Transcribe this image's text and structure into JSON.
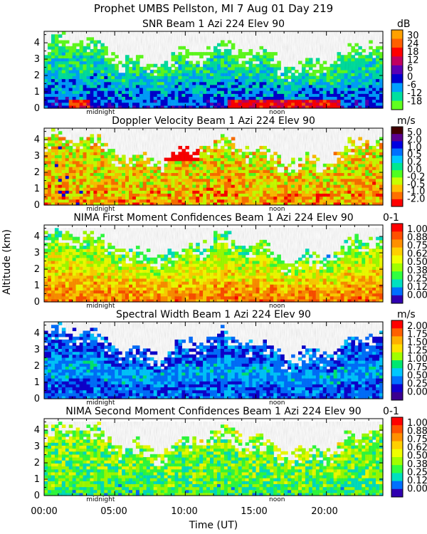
{
  "header": {
    "line1": "Prophet  UMBS Pellston, MI   7 Aug 01 Day 219"
  },
  "axes": {
    "ylabel": "Altitude (km)",
    "xlabel": "Time (UT)",
    "xticks": [
      "00:00",
      "05:00",
      "10:00",
      "15:00",
      "20:00"
    ],
    "yticks": [
      "0",
      "1",
      "2",
      "3",
      "4"
    ],
    "midnight_label": "midnight",
    "noon_label": "noon"
  },
  "chart_data": [
    {
      "type": "heatmap",
      "title": "SNR Beam 1 Azi 224 Elev 90",
      "xlabel": "Time (UT)",
      "ylabel": "Altitude (km)",
      "xlim": [
        0,
        24
      ],
      "ylim": [
        0,
        4.7
      ],
      "colorbar": {
        "unit": "dB",
        "labels": [
          "30",
          "24",
          "18",
          "12",
          "6",
          "0",
          "-6",
          "-12",
          "-18"
        ],
        "colors": [
          "#ffa000",
          "#ff6000",
          "#ff0000",
          "#c00060",
          "#5a00b4",
          "#0000d0",
          "#00a0ff",
          "#00e0a0",
          "#60ff20"
        ]
      },
      "features": "Strong returns (18-30 dB) near 0-0.5 km around 02:00-03:00 and 14:00-20:00; 6-12 dB layer 1-2.5 km 02:00-10:00; weak (-6 to -18 dB) above 2.5 km; no data above ~4.5 km."
    },
    {
      "type": "heatmap",
      "title": "Doppler Velocity Beam 1 Azi 224 Elev 90",
      "xlabel": "Time (UT)",
      "ylabel": "Altitude (km)",
      "xlim": [
        0,
        24
      ],
      "ylim": [
        0,
        4.7
      ],
      "colorbar": {
        "unit": "m/s",
        "labels": [
          "5.0",
          "2.0",
          "1.0",
          "0.5",
          "0.2",
          "0.0",
          "-0.2",
          "-0.5",
          "-1.0",
          "-2.0"
        ],
        "colors": [
          "#400000",
          "#5a0090",
          "#0000e0",
          "#0070ff",
          "#00c8ff",
          "#00e890",
          "#50ff20",
          "#c8ff00",
          "#ffc000",
          "#ff7000",
          "#ff0000"
        ]
      },
      "features": "Mostly -0.2 to -1.0 m/s (yellow-orange) throughout; red (-2.0 m/s) patch 3-4.5 km near 10:00; occasional blue updraft streaks 01:00-03:00."
    },
    {
      "type": "heatmap",
      "title": "NIMA First Moment Confidences Beam 1 Azi 224 Elev 90",
      "xlabel": "Time (UT)",
      "ylabel": "Altitude (km)",
      "xlim": [
        0,
        24
      ],
      "ylim": [
        0,
        4.7
      ],
      "colorbar": {
        "unit": "0-1",
        "labels": [
          "1.00",
          "0.88",
          "0.75",
          "0.62",
          "0.50",
          "0.38",
          "0.25",
          "0.12",
          "0.00"
        ],
        "colors": [
          "#ff0000",
          "#ff5000",
          "#ff9000",
          "#ffd000",
          "#f0ff00",
          "#a0ff00",
          "#30ff40",
          "#00e0c0",
          "#0070ff",
          "#3000b0"
        ]
      },
      "features": "High confidence (0.88-1.00) below ~2.5 km, especially 02:00-03:00 and 12:00-24:00; moderate (0.50-0.75) aloft."
    },
    {
      "type": "heatmap",
      "title": "Spectral Width Beam 1 Azi 224 Elev 90",
      "xlabel": "Time (UT)",
      "ylabel": "Altitude (km)",
      "xlim": [
        0,
        24
      ],
      "ylim": [
        0,
        4.7
      ],
      "colorbar": {
        "unit": "m/s",
        "labels": [
          "2.00",
          "1.75",
          "1.50",
          "1.25",
          "1.00",
          "0.75",
          "0.50",
          "0.25",
          "0.00"
        ],
        "colors": [
          "#ff0000",
          "#ff6000",
          "#ffb000",
          "#ffe000",
          "#a0ff00",
          "#00e870",
          "#00c8ff",
          "#0070ff",
          "#1000d0",
          "#3a0090"
        ]
      },
      "features": "Predominantly narrow widths 0.25-0.50 m/s (blue); lighter cyan 0.50-0.75 m/s 1-2.5 km; rare green/yellow >1.0 m/s."
    },
    {
      "type": "heatmap",
      "title": "NIMA Second Moment Confidences Beam 1 Azi 224 Elev 90",
      "xlabel": "Time (UT)",
      "ylabel": "Altitude (km)",
      "xlim": [
        0,
        24
      ],
      "ylim": [
        0,
        4.7
      ],
      "colorbar": {
        "unit": "0-1",
        "labels": [
          "1.00",
          "0.88",
          "0.75",
          "0.62",
          "0.50",
          "0.38",
          "0.25",
          "0.12",
          "0.00"
        ],
        "colors": [
          "#ff0000",
          "#ff5000",
          "#ff9000",
          "#ffd000",
          "#f0ff00",
          "#a0ff00",
          "#30ff40",
          "#00e0c0",
          "#0070ff",
          "#3000b0"
        ]
      },
      "features": "Low-to-moderate confidences 0.12-0.50 throughout (blue-green), with darker blue vertical streaks; higher (0.50-0.62) 2.5-4 km."
    }
  ]
}
